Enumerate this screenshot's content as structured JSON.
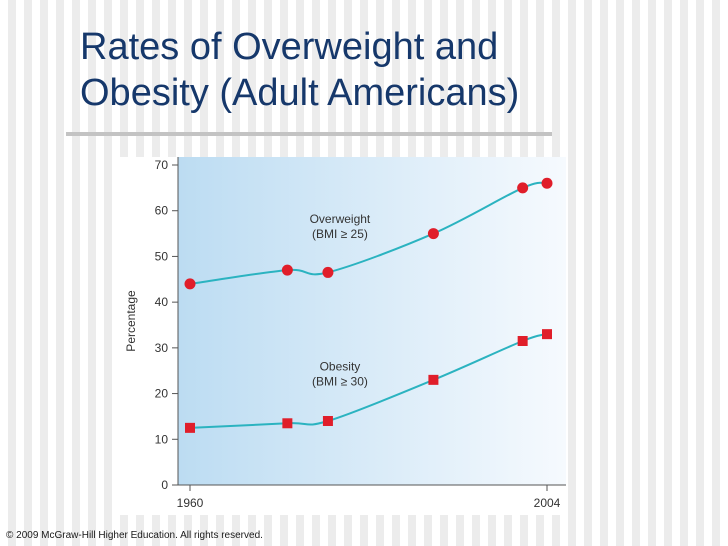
{
  "slide": {
    "title_line1": "Rates of Overweight and",
    "title_line2": "Obesity (Adult Americans)",
    "copyright": "© 2009 McGraw-Hill Higher Education. All rights reserved."
  },
  "colors": {
    "title": "#16386b",
    "line": "#2bb3c0",
    "marker": "#e01e2a",
    "plot_left": "#bcdcf2",
    "plot_right": "#f6fafe"
  },
  "chart_data": {
    "type": "line",
    "title": "",
    "xlabel": "",
    "ylabel": "Percentage",
    "x_tick_labels": [
      "1960",
      "2004"
    ],
    "xlim": [
      1960,
      2004
    ],
    "ylim": [
      0,
      70
    ],
    "y_ticks": [
      0,
      10,
      20,
      30,
      40,
      50,
      60,
      70
    ],
    "grid": false,
    "series": [
      {
        "name": "Overweight",
        "annotation_line1": "Overweight",
        "annotation_line2": "(BMI ≥ 25)",
        "marker": "circle",
        "x": [
          1960,
          1972,
          1977,
          1990,
          2001,
          2004
        ],
        "values": [
          44,
          47,
          46.5,
          55,
          65,
          66
        ]
      },
      {
        "name": "Obesity",
        "annotation_line1": "Obesity",
        "annotation_line2": "(BMI ≥ 30)",
        "marker": "square",
        "x": [
          1960,
          1972,
          1977,
          1990,
          2001,
          2004
        ],
        "values": [
          12.5,
          13.5,
          14,
          23,
          31.5,
          33
        ]
      }
    ]
  }
}
